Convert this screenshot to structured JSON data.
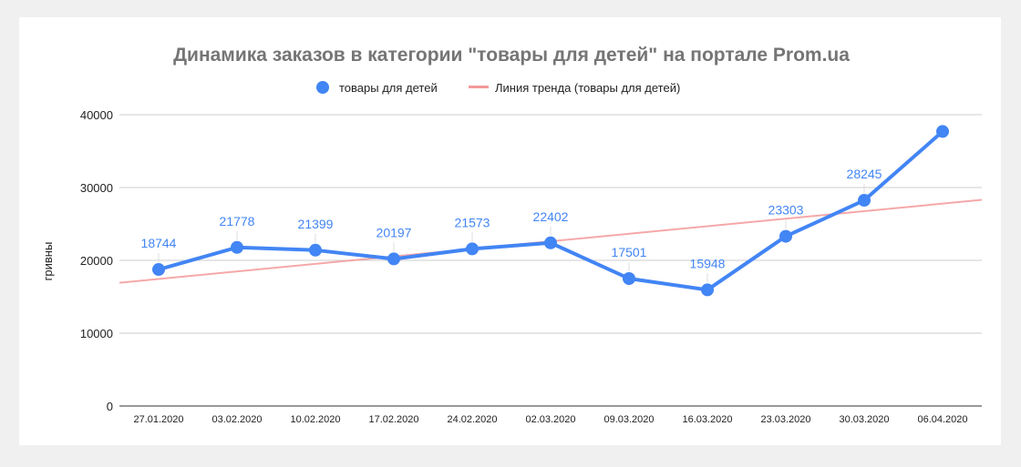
{
  "chart_data": {
    "type": "line",
    "title": "Динамика заказов в категории \"товары для детей\" на портале Prom.ua",
    "xlabel": "",
    "ylabel": "гривны",
    "ylim": [
      0,
      40000
    ],
    "yticks": [
      "0",
      "10000",
      "20000",
      "30000",
      "40000"
    ],
    "categories": [
      "27.01.2020",
      "03.02.2020",
      "10.02.2020",
      "17.02.2020",
      "24.02.2020",
      "02.03.2020",
      "09.03.2020",
      "16.03.2020",
      "23.03.2020",
      "30.03.2020",
      "06.04.2020"
    ],
    "series": [
      {
        "name": "товары для детей",
        "color": "#4285f4",
        "values": [
          18744,
          21778,
          21399,
          20197,
          21573,
          22402,
          17501,
          15948,
          23303,
          28245,
          37700
        ],
        "labels": [
          "18744",
          "21778",
          "21399",
          "20197",
          "21573",
          "22402",
          "17501",
          "15948",
          "23303",
          "28245",
          ""
        ]
      }
    ],
    "trendline": {
      "name": "Линия тренда (товары для детей)",
      "color": "#f4999a",
      "type": "linear"
    },
    "grid": true,
    "legend_position": "top"
  }
}
